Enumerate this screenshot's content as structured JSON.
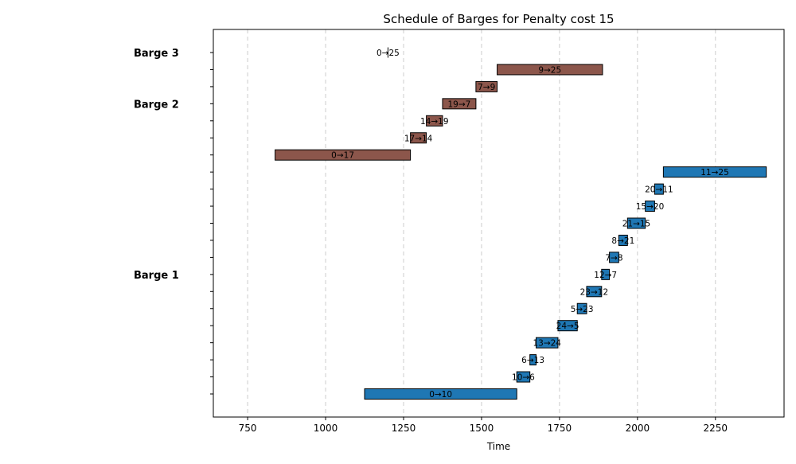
{
  "chart_data": {
    "type": "gantt",
    "title": "Schedule of Barges for Penalty cost 15",
    "xlabel": "Time",
    "xlim": [
      640,
      2470
    ],
    "xticks": [
      750,
      1000,
      1250,
      1500,
      1750,
      2000,
      2250
    ],
    "grid": "vertical dashed",
    "row_count": 21,
    "colors": {
      "Barge 1": "#1f77b4",
      "Barge 2": "#8c564b",
      "Barge 3": "#8c564b"
    },
    "barges": [
      {
        "name": "Barge 1",
        "label_row": 13
      },
      {
        "name": "Barge 2",
        "label_row": 3
      },
      {
        "name": "Barge 3",
        "label_row": 0
      }
    ],
    "tasks": [
      {
        "label": "0→25",
        "barge": "Barge 3",
        "row": 0,
        "start": 1198,
        "end": 1202
      },
      {
        "label": "9→25",
        "barge": "Barge 2",
        "row": 1,
        "start": 1550,
        "end": 1888
      },
      {
        "label": "7→9",
        "barge": "Barge 2",
        "row": 2,
        "start": 1482,
        "end": 1550
      },
      {
        "label": "19→7",
        "barge": "Barge 2",
        "row": 3,
        "start": 1375,
        "end": 1482
      },
      {
        "label": "14→19",
        "barge": "Barge 2",
        "row": 4,
        "start": 1323,
        "end": 1375
      },
      {
        "label": "17→14",
        "barge": "Barge 2",
        "row": 5,
        "start": 1272,
        "end": 1323
      },
      {
        "label": "0→17",
        "barge": "Barge 2",
        "row": 6,
        "start": 838,
        "end": 1272
      },
      {
        "label": "11→25",
        "barge": "Barge 1",
        "row": 7,
        "start": 2083,
        "end": 2413
      },
      {
        "label": "20→11",
        "barge": "Barge 1",
        "row": 8,
        "start": 2055,
        "end": 2083
      },
      {
        "label": "15→20",
        "barge": "Barge 1",
        "row": 9,
        "start": 2025,
        "end": 2055
      },
      {
        "label": "21→15",
        "barge": "Barge 1",
        "row": 10,
        "start": 1968,
        "end": 2025
      },
      {
        "label": "8→21",
        "barge": "Barge 1",
        "row": 11,
        "start": 1940,
        "end": 1968
      },
      {
        "label": "7→8",
        "barge": "Barge 1",
        "row": 12,
        "start": 1910,
        "end": 1940
      },
      {
        "label": "12→7",
        "barge": "Barge 1",
        "row": 13,
        "start": 1885,
        "end": 1910
      },
      {
        "label": "23→12",
        "barge": "Barge 1",
        "row": 14,
        "start": 1837,
        "end": 1885
      },
      {
        "label": "5→23",
        "barge": "Barge 1",
        "row": 15,
        "start": 1807,
        "end": 1837
      },
      {
        "label": "24→5",
        "barge": "Barge 1",
        "row": 16,
        "start": 1745,
        "end": 1807
      },
      {
        "label": "13→24",
        "barge": "Barge 1",
        "row": 17,
        "start": 1675,
        "end": 1745
      },
      {
        "label": "6→13",
        "barge": "Barge 1",
        "row": 18,
        "start": 1655,
        "end": 1675
      },
      {
        "label": "10→6",
        "barge": "Barge 1",
        "row": 19,
        "start": 1613,
        "end": 1655
      },
      {
        "label": "0→10",
        "barge": "Barge 1",
        "row": 20,
        "start": 1125,
        "end": 1613
      }
    ]
  }
}
